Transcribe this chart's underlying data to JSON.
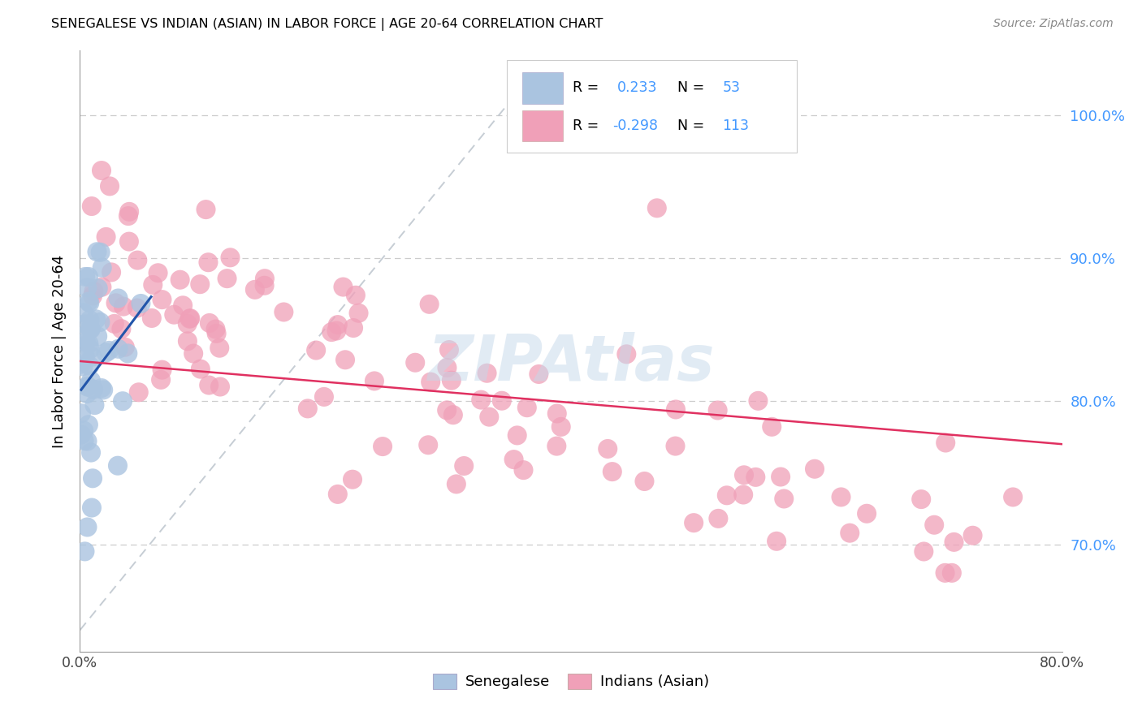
{
  "title": "SENEGALESE VS INDIAN (ASIAN) IN LABOR FORCE | AGE 20-64 CORRELATION CHART",
  "source": "Source: ZipAtlas.com",
  "ylabel": "In Labor Force | Age 20-64",
  "xlim": [
    0.0,
    0.8
  ],
  "ylim": [
    0.625,
    1.045
  ],
  "ytick_right_labels": [
    "100.0%",
    "90.0%",
    "80.0%",
    "70.0%"
  ],
  "ytick_right_values": [
    1.0,
    0.9,
    0.8,
    0.7
  ],
  "blue_color": "#aac4e0",
  "blue_line_color": "#2255aa",
  "pink_color": "#f0a0b8",
  "pink_line_color": "#e03060",
  "diagonal_color": "#c0c8d0",
  "r_blue": 0.233,
  "n_blue": 53,
  "r_pink": -0.298,
  "n_pink": 113,
  "legend_r_color": "#4499ff",
  "watermark": "ZIPAtlas",
  "blue_R_text": "0.233",
  "blue_N_text": "53",
  "pink_R_text": "-0.298",
  "pink_N_text": "113"
}
